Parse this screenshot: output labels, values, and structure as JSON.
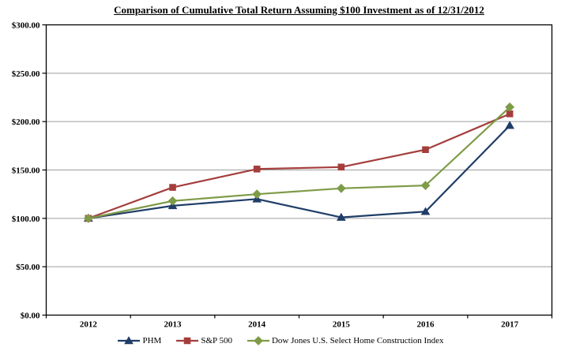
{
  "chart_data": {
    "type": "line",
    "title": "Comparison of Cumulative Total Return Assuming $100 Investment as of 12/31/2012",
    "categories": [
      "2012",
      "2013",
      "2014",
      "2015",
      "2016",
      "2017"
    ],
    "y_axis": {
      "min": 0,
      "max": 300,
      "step": 50,
      "tick_values": [
        0,
        50,
        100,
        150,
        200,
        250,
        300
      ],
      "tick_labels": [
        "$0.00",
        "$50.00",
        "$100.00",
        "$150.00",
        "$200.00",
        "$250.00",
        "$300.00"
      ]
    },
    "series": [
      {
        "name": "PHM",
        "color": "#1F3D68",
        "marker": "triangle",
        "values": [
          100,
          113,
          120,
          101,
          107,
          196
        ]
      },
      {
        "name": "S&P 500",
        "color": "#A43E3D",
        "marker": "square",
        "values": [
          100,
          132,
          151,
          153,
          171,
          208
        ]
      },
      {
        "name": "Dow Jones U.S. Select Home Construction Index",
        "color": "#7E9B47",
        "marker": "diamond",
        "values": [
          100,
          118,
          125,
          131,
          134,
          215
        ]
      }
    ],
    "grid": true,
    "gridline_color": "#9E9E9E",
    "axis_color": "#000000",
    "legend_position": "bottom"
  }
}
